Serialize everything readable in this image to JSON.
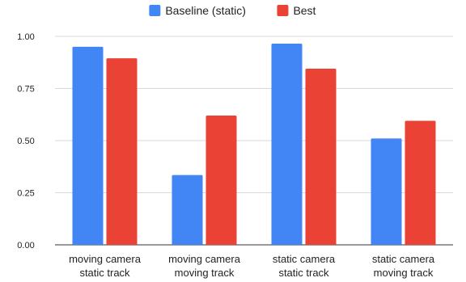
{
  "chart_data": {
    "type": "bar",
    "categories": [
      [
        "moving camera",
        "static track"
      ],
      [
        "moving camera",
        "moving track"
      ],
      [
        "static camera",
        "static track"
      ],
      [
        "static camera",
        "moving track"
      ]
    ],
    "series": [
      {
        "name": "Baseline (static)",
        "color": "#4285f4",
        "values": [
          0.95,
          0.335,
          0.965,
          0.51
        ]
      },
      {
        "name": "Best",
        "color": "#ea4335",
        "values": [
          0.895,
          0.62,
          0.845,
          0.595
        ]
      }
    ],
    "y_ticks": [
      "0.00",
      "0.25",
      "0.50",
      "0.75",
      "1.00"
    ],
    "y_tick_values": [
      0,
      0.25,
      0.5,
      0.75,
      1.0
    ],
    "ylim": [
      0,
      1.0
    ],
    "title": "",
    "xlabel": "",
    "ylabel": "",
    "legend_position": "top-center",
    "grid": true,
    "grid_color": "#d9d9d9",
    "axis_color": "#333333"
  }
}
